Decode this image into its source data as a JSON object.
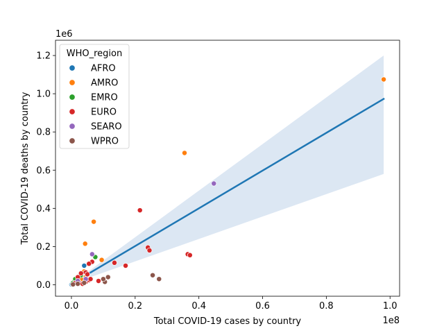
{
  "chart_data": {
    "type": "scatter",
    "xlabel": "Total COVID-19 cases by country",
    "ylabel": "Total COVID-19 deaths by country",
    "x_offset_text": "1e8",
    "y_offset_text": "1e6",
    "x_scale": 100000000,
    "y_scale": 1000000,
    "xlim": [
      -0.05,
      1.03
    ],
    "ylim": [
      -0.06,
      1.28
    ],
    "x_ticks": [
      0.0,
      0.2,
      0.4,
      0.6,
      0.8,
      1.0
    ],
    "x_tick_labels": [
      "0.0",
      "0.2",
      "0.4",
      "0.6",
      "0.8",
      "1.0"
    ],
    "y_ticks": [
      0.0,
      0.2,
      0.4,
      0.6,
      0.8,
      1.0,
      1.2
    ],
    "y_tick_labels": [
      "0.0",
      "0.2",
      "0.4",
      "0.6",
      "0.8",
      "1.0",
      "1.2"
    ],
    "legend": {
      "title": "WHO_region",
      "position": "upper-left"
    },
    "regression": {
      "line_color": "#1f77b4",
      "band_color": "#dce7f3",
      "x_range": [
        0.0,
        0.98
      ],
      "y_start": 0.005,
      "y_end": 0.973,
      "band_lower_end": 0.58,
      "band_upper_end": 1.2
    },
    "series": [
      {
        "name": "AFRO",
        "color": "#1f77b4",
        "points": [
          [
            0.0,
            0.002
          ],
          [
            0.002,
            0.005
          ],
          [
            0.005,
            0.01
          ],
          [
            0.008,
            0.015
          ],
          [
            0.015,
            0.02
          ],
          [
            0.03,
            0.025
          ],
          [
            0.04,
            0.1
          ],
          [
            0.045,
            0.03
          ]
        ]
      },
      {
        "name": "AMRO",
        "color": "#ff7f0e",
        "points": [
          [
            0.98,
            1.075
          ],
          [
            0.355,
            0.69
          ],
          [
            0.07,
            0.33
          ],
          [
            0.043,
            0.215
          ],
          [
            0.095,
            0.13
          ],
          [
            0.04,
            0.07
          ],
          [
            0.02,
            0.035
          ],
          [
            0.01,
            0.02
          ],
          [
            0.005,
            0.01
          ],
          [
            0.045,
            0.04
          ],
          [
            0.03,
            0.03
          ],
          [
            0.015,
            0.015
          ]
        ]
      },
      {
        "name": "EMRO",
        "color": "#2ca02c",
        "points": [
          [
            0.075,
            0.145
          ],
          [
            0.012,
            0.03
          ],
          [
            0.02,
            0.02
          ],
          [
            0.005,
            0.01
          ],
          [
            0.03,
            0.05
          ],
          [
            0.008,
            0.005
          ]
        ]
      },
      {
        "name": "EURO",
        "color": "#d62728",
        "points": [
          [
            0.215,
            0.39
          ],
          [
            0.24,
            0.195
          ],
          [
            0.245,
            0.18
          ],
          [
            0.365,
            0.16
          ],
          [
            0.372,
            0.155
          ],
          [
            0.135,
            0.115
          ],
          [
            0.17,
            0.1
          ],
          [
            0.065,
            0.12
          ],
          [
            0.055,
            0.11
          ],
          [
            0.045,
            0.065
          ],
          [
            0.03,
            0.06
          ],
          [
            0.05,
            0.055
          ],
          [
            0.085,
            0.02
          ],
          [
            0.02,
            0.04
          ],
          [
            0.025,
            0.01
          ],
          [
            0.035,
            0.005
          ],
          [
            0.045,
            0.015
          ],
          [
            0.055,
            0.025
          ],
          [
            0.01,
            0.008
          ],
          [
            0.06,
            0.03
          ]
        ]
      },
      {
        "name": "SEARO",
        "color": "#9467bd",
        "points": [
          [
            0.447,
            0.53
          ],
          [
            0.065,
            0.16
          ],
          [
            0.045,
            0.03
          ],
          [
            0.02,
            0.02
          ]
        ]
      },
      {
        "name": "WPRO",
        "color": "#8c564b",
        "points": [
          [
            0.255,
            0.05
          ],
          [
            0.275,
            0.03
          ],
          [
            0.115,
            0.04
          ],
          [
            0.105,
            0.015
          ],
          [
            0.1,
            0.03
          ],
          [
            0.04,
            0.01
          ],
          [
            0.02,
            0.005
          ],
          [
            0.005,
            0.002
          ]
        ]
      }
    ]
  }
}
